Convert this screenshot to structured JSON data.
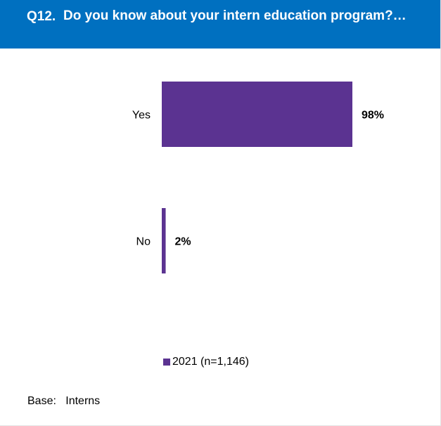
{
  "header": {
    "question_number": "Q12.",
    "question_text": "Do you know about your intern education program?…",
    "background_color": "#0070c0"
  },
  "chart_data": {
    "type": "bar",
    "orientation": "horizontal",
    "categories": [
      "Yes",
      "No"
    ],
    "series": [
      {
        "name": "2021 (n=1,146)",
        "values": [
          98,
          2
        ],
        "color": "#5b3391"
      }
    ],
    "value_labels": [
      "98%",
      "2%"
    ],
    "title": "",
    "xlabel": "",
    "ylabel": "",
    "xlim": [
      0,
      100
    ],
    "grid": false,
    "legend_position": "bottom"
  },
  "legend": {
    "label": "2021 (n=1,146)"
  },
  "footer": {
    "base_label": "Base:",
    "base_value": "Interns"
  }
}
